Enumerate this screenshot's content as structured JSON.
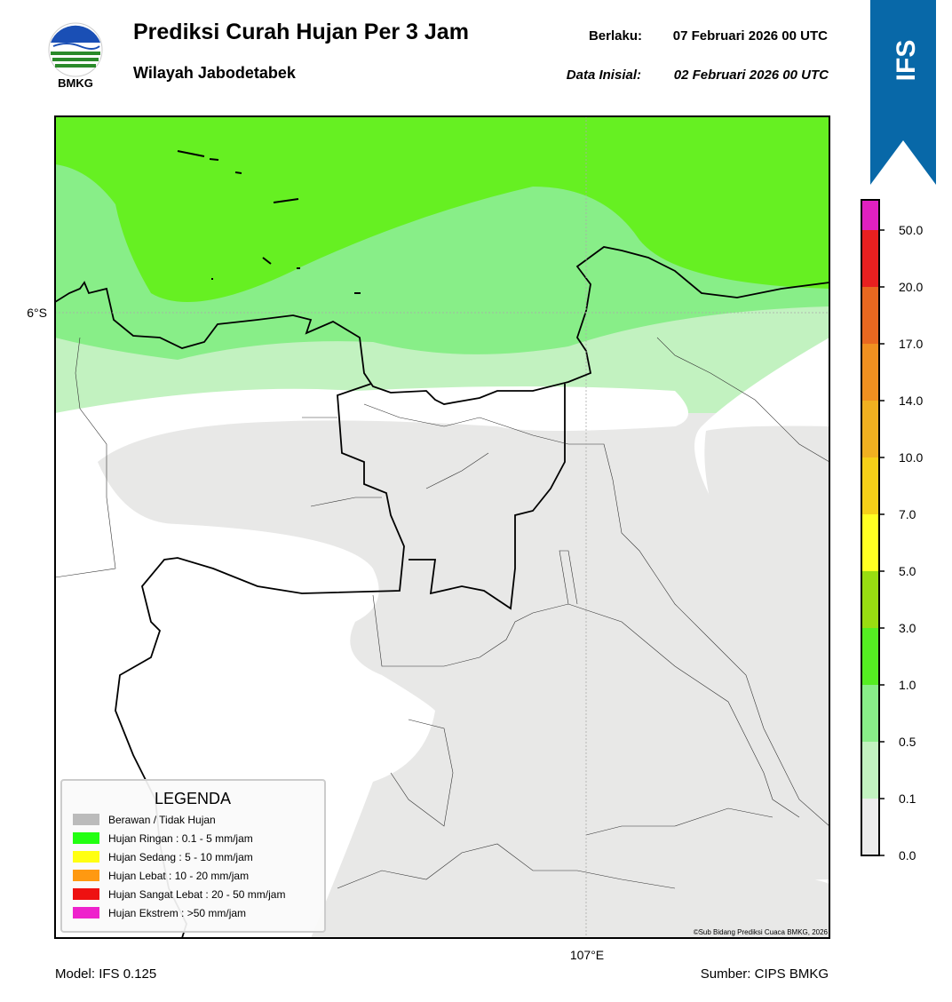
{
  "header": {
    "logo_text": "BMKG",
    "title": "Prediksi Curah Hujan Per 3 Jam",
    "subtitle": "Wilayah Jabodetabek",
    "valid_label": "Berlaku:",
    "valid_value": "07 Februari 2026 00 UTC",
    "init_label": "Data Inisial:",
    "init_value": "02 Februari 2026 00 UTC",
    "badge": "IFS"
  },
  "map": {
    "lat_label": "6°S",
    "lon_label": "107°E",
    "credit": "©Sub Bidang Prediksi Cuaca BMKG, 2026"
  },
  "legend": {
    "title": "LEGENDA",
    "items": [
      {
        "label": "Berawan / Tidak Hujan",
        "color": "#bbbbbb"
      },
      {
        "label": "Hujan Ringan : 0.1 - 5 mm/jam",
        "color": "#22ff11"
      },
      {
        "label": "Hujan Sedang : 5 - 10 mm/jam",
        "color": "#ffff11"
      },
      {
        "label": "Hujan Lebat : 10 - 20 mm/jam",
        "color": "#ff9911"
      },
      {
        "label": "Hujan Sangat Lebat : 20 - 50 mm/jam",
        "color": "#ee1111"
      },
      {
        "label": "Hujan Ekstrem : >50 mm/jam",
        "color": "#ee22cc"
      }
    ]
  },
  "colorbar": {
    "labels": [
      "0.0",
      "0.1",
      "0.5",
      "1.0",
      "3.0",
      "5.0",
      "7.0",
      "10.0",
      "14.0",
      "17.0",
      "20.0",
      "50.0"
    ],
    "colors": [
      "#ececec",
      "#c2f2c0",
      "#88ee88",
      "#55ee22",
      "#99dd11",
      "#ffff22",
      "#f5d018",
      "#f0b020",
      "#f09020",
      "#e86820",
      "#e82020",
      "#e020c0"
    ]
  },
  "footer": {
    "model": "Model: IFS 0.125",
    "source": "Sumber: CIPS BMKG"
  }
}
